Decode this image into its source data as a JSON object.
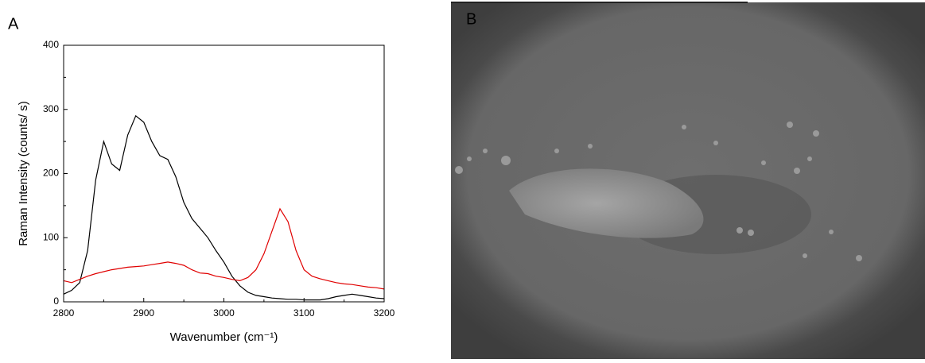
{
  "panel_a_label": "A",
  "panel_b_label": "B",
  "chart_data": {
    "type": "line",
    "xlabel": "Wavenumber (cm⁻¹)",
    "ylabel": "Raman Intensity (counts/ s)",
    "x": [
      2800,
      2810,
      2820,
      2830,
      2840,
      2850,
      2860,
      2870,
      2880,
      2890,
      2900,
      2910,
      2920,
      2930,
      2940,
      2950,
      2960,
      2970,
      2980,
      2990,
      3000,
      3010,
      3020,
      3030,
      3040,
      3050,
      3060,
      3070,
      3080,
      3090,
      3100,
      3110,
      3120,
      3130,
      3140,
      3150,
      3160,
      3170,
      3180,
      3190,
      3200
    ],
    "series": [
      {
        "color": "#000000",
        "values": [
          12,
          18,
          30,
          80,
          190,
          250,
          215,
          205,
          260,
          290,
          280,
          250,
          228,
          222,
          195,
          155,
          130,
          115,
          100,
          80,
          62,
          40,
          25,
          15,
          10,
          8,
          6,
          5,
          4,
          4,
          3,
          3,
          3,
          5,
          8,
          10,
          12,
          10,
          8,
          6,
          5
        ]
      },
      {
        "color": "#e00000",
        "values": [
          33,
          30,
          35,
          40,
          44,
          47,
          50,
          52,
          54,
          55,
          56,
          58,
          60,
          62,
          60,
          57,
          50,
          45,
          44,
          40,
          38,
          35,
          33,
          38,
          50,
          75,
          110,
          145,
          125,
          80,
          50,
          40,
          36,
          33,
          30,
          28,
          27,
          25,
          23,
          22,
          20
        ]
      }
    ],
    "xlim": [
      2800,
      3200
    ],
    "ylim": [
      0,
      400
    ],
    "xticks": [
      2800,
      2900,
      3000,
      3100,
      3200
    ],
    "yticks": [
      0,
      100,
      200,
      300,
      400
    ]
  }
}
